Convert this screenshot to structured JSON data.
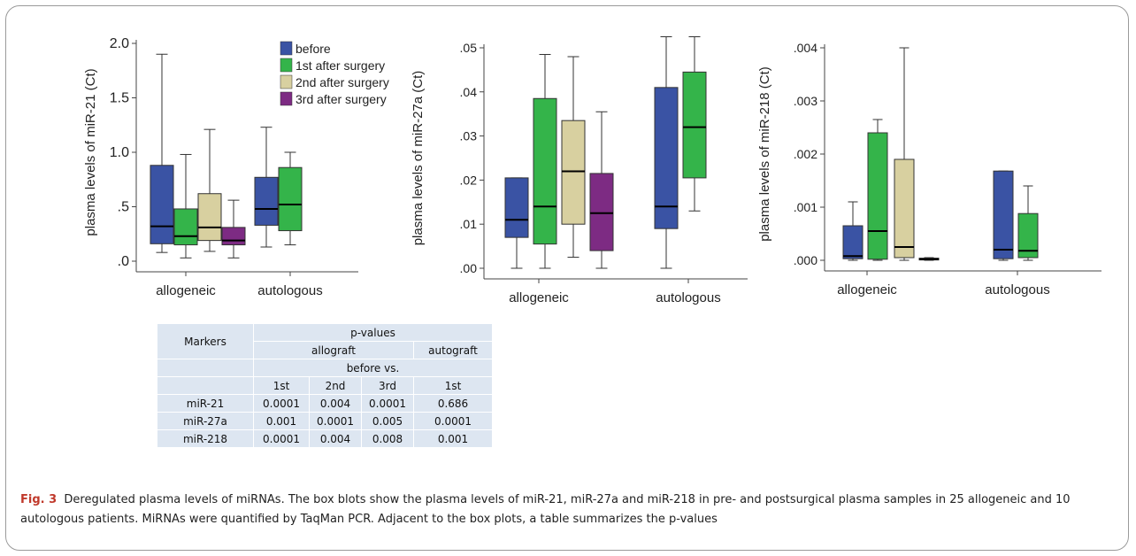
{
  "chart_data": [
    {
      "type": "boxplot",
      "ylabel": "plasma levels of miR-21 (Ct)",
      "ylim": [
        0,
        2.0
      ],
      "yticks": [
        0,
        0.5,
        1.0,
        1.5,
        2.0
      ],
      "ytick_labels": [
        ".0",
        ".5",
        "1.0",
        "1.5",
        "2.0"
      ],
      "categories": [
        "allogeneic",
        "autologous"
      ],
      "legend": "top-right",
      "series": [
        {
          "name": "before",
          "color": "#3a53a4",
          "boxes": [
            {
              "category": "allogeneic",
              "min": 0.08,
              "q1": 0.16,
              "median": 0.32,
              "q3": 0.88,
              "max": 1.9
            },
            {
              "category": "autologous",
              "min": 0.13,
              "q1": 0.33,
              "median": 0.48,
              "q3": 0.77,
              "max": 1.23
            }
          ]
        },
        {
          "name": "1st after surgery",
          "color": "#34b44a",
          "boxes": [
            {
              "category": "allogeneic",
              "min": 0.03,
              "q1": 0.15,
              "median": 0.23,
              "q3": 0.48,
              "max": 0.98
            },
            {
              "category": "autologous",
              "min": 0.15,
              "q1": 0.28,
              "median": 0.52,
              "q3": 0.86,
              "max": 1.0
            }
          ]
        },
        {
          "name": "2nd after surgery",
          "color": "#d8d0a0",
          "boxes": [
            {
              "category": "allogeneic",
              "min": 0.09,
              "q1": 0.19,
              "median": 0.31,
              "q3": 0.62,
              "max": 1.21
            }
          ]
        },
        {
          "name": "3rd after surgery",
          "color": "#7d2b83",
          "boxes": [
            {
              "category": "allogeneic",
              "min": 0.03,
              "q1": 0.15,
              "median": 0.19,
              "q3": 0.31,
              "max": 0.56
            }
          ]
        }
      ]
    },
    {
      "type": "boxplot",
      "ylabel": "plasma levels of miR-27a (Ct)",
      "ylim": [
        0,
        0.05
      ],
      "yticks": [
        0,
        0.01,
        0.02,
        0.03,
        0.04,
        0.05
      ],
      "ytick_labels": [
        ".00",
        ".01",
        ".02",
        ".03",
        ".04",
        ".05"
      ],
      "categories": [
        "allogeneic",
        "autologous"
      ],
      "series": [
        {
          "name": "before",
          "color": "#3a53a4",
          "boxes": [
            {
              "category": "allogeneic",
              "min": 0.0,
              "q1": 0.007,
              "median": 0.011,
              "q3": 0.0205,
              "max": 0.0205
            },
            {
              "category": "autologous",
              "min": 0.0,
              "q1": 0.009,
              "median": 0.014,
              "q3": 0.041,
              "max": 0.0525
            }
          ]
        },
        {
          "name": "1st after surgery",
          "color": "#34b44a",
          "boxes": [
            {
              "category": "allogeneic",
              "min": 0.0,
              "q1": 0.0055,
              "median": 0.014,
              "q3": 0.0385,
              "max": 0.0485
            },
            {
              "category": "autologous",
              "min": 0.013,
              "q1": 0.0205,
              "median": 0.032,
              "q3": 0.0445,
              "max": 0.0525
            }
          ]
        },
        {
          "name": "2nd after surgery",
          "color": "#d8d0a0",
          "boxes": [
            {
              "category": "allogeneic",
              "min": 0.0025,
              "q1": 0.01,
              "median": 0.022,
              "q3": 0.0335,
              "max": 0.048
            }
          ]
        },
        {
          "name": "3rd after surgery",
          "color": "#7d2b83",
          "boxes": [
            {
              "category": "allogeneic",
              "min": 0.0,
              "q1": 0.004,
              "median": 0.0125,
              "q3": 0.0215,
              "max": 0.0355
            }
          ]
        }
      ]
    },
    {
      "type": "boxplot",
      "ylabel": "plasma levels of miR-218 (Ct)",
      "ylim": [
        0,
        0.004
      ],
      "yticks": [
        0,
        0.001,
        0.002,
        0.003,
        0.004
      ],
      "ytick_labels": [
        ".000",
        ".001",
        ".002",
        ".003",
        ".004"
      ],
      "categories": [
        "allogeneic",
        "autologous"
      ],
      "series": [
        {
          "name": "before",
          "color": "#3a53a4",
          "boxes": [
            {
              "category": "allogeneic",
              "min": 0.0,
              "q1": 3e-05,
              "median": 8e-05,
              "q3": 0.00065,
              "max": 0.0011
            },
            {
              "category": "autologous",
              "min": 0.0,
              "q1": 3e-05,
              "median": 0.0002,
              "q3": 0.00168,
              "max": 0.00168
            }
          ]
        },
        {
          "name": "1st after surgery",
          "color": "#34b44a",
          "boxes": [
            {
              "category": "allogeneic",
              "min": 0.0,
              "q1": 2e-05,
              "median": 0.00055,
              "q3": 0.0024,
              "max": 0.00265
            },
            {
              "category": "autologous",
              "min": 0.0,
              "q1": 5e-05,
              "median": 0.00018,
              "q3": 0.00088,
              "max": 0.0014
            }
          ]
        },
        {
          "name": "2nd after surgery",
          "color": "#d8d0a0",
          "boxes": [
            {
              "category": "allogeneic",
              "min": 0.0,
              "q1": 5e-05,
              "median": 0.00025,
              "q3": 0.0019,
              "max": 0.004
            }
          ]
        },
        {
          "name": "3rd after surgery",
          "color": "#7d2b83",
          "boxes": [
            {
              "category": "allogeneic",
              "min": 0.0,
              "q1": 1e-05,
              "median": 2e-05,
              "q3": 4e-05,
              "max": 5e-05
            }
          ]
        }
      ]
    },
    {
      "type": "table",
      "rows": [
        [
          "Markers",
          "p-values"
        ],
        [
          "allograft",
          "autograft"
        ],
        [
          "before vs."
        ],
        [
          "1st",
          "2nd",
          "3rd",
          "1st"
        ],
        [
          "miR-21",
          "0.0001",
          "0.004",
          "0.0001",
          "0.686"
        ],
        [
          "miR-27a",
          "0.001",
          "0.0001",
          "0.005",
          "0.0001"
        ],
        [
          "miR-218",
          "0.0001",
          "0.004",
          "0.008",
          "0.001"
        ]
      ]
    }
  ],
  "caption": {
    "label": "Fig. 3",
    "text": "Deregulated plasma levels of miRNAs. The box blots show the plasma levels of miR-21, miR-27a and miR-218 in pre- and postsurgical plasma samples in 25 allogeneic and 10 autologous patients. MiRNAs were quantified by TaqMan PCR. Adjacent to the box plots, a table summarizes the p-values"
  }
}
